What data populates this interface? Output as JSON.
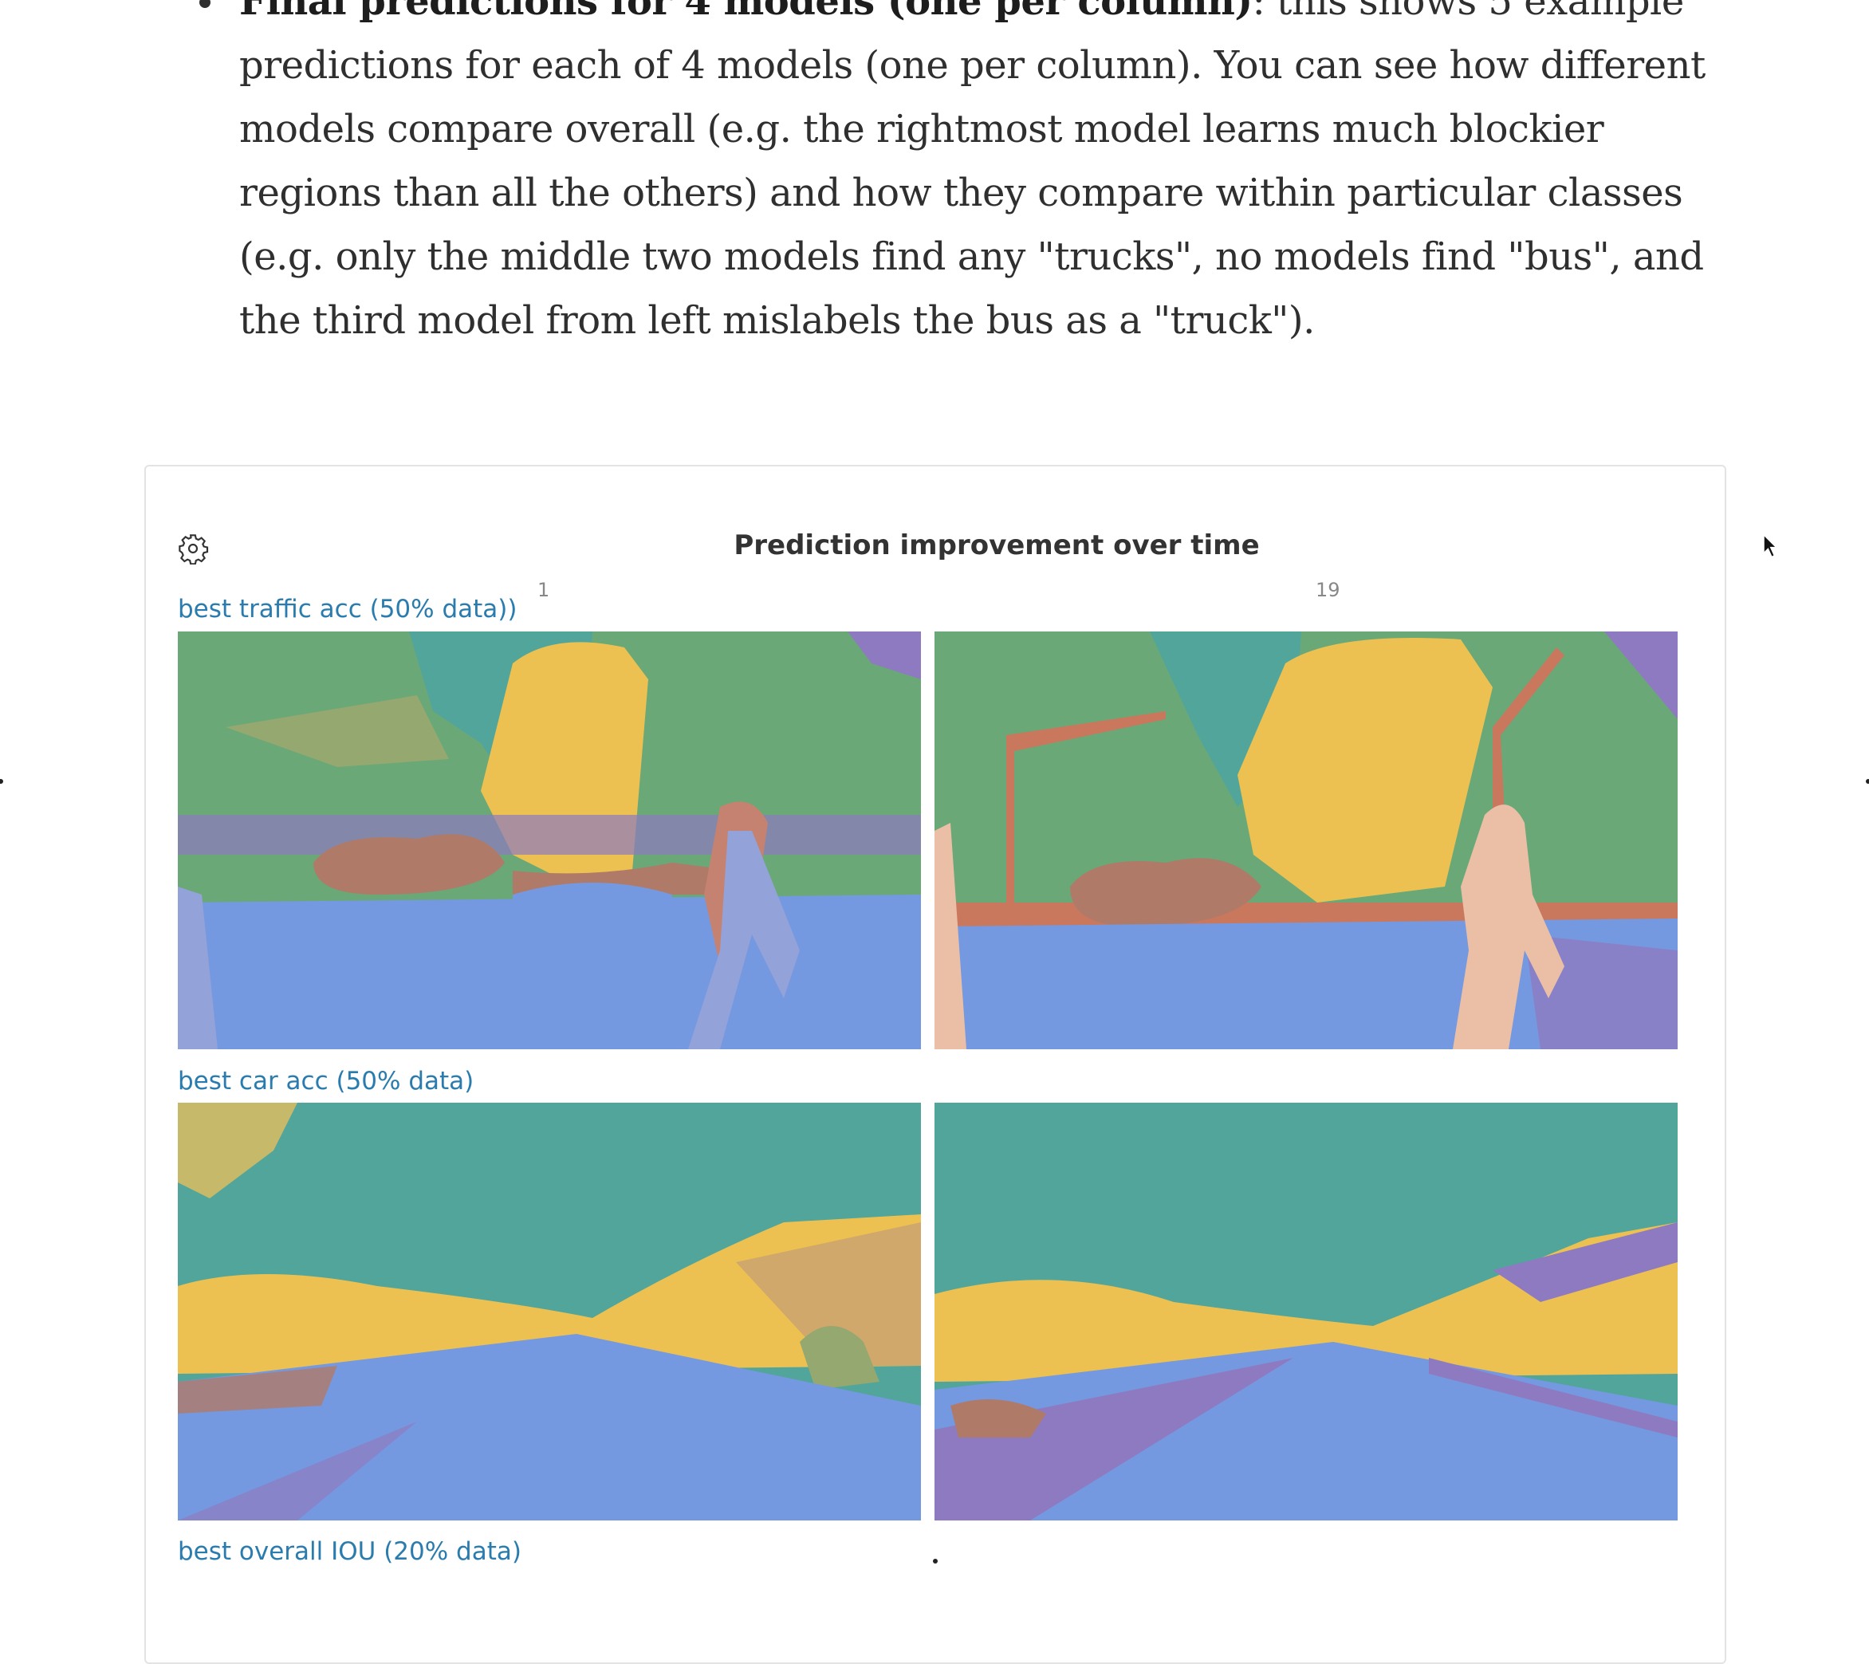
{
  "text": {
    "bold_lead": "Final predictions for 4 models (one per column)",
    "body": ": this shows 5 example predictions for each of 4 models (one per column). You can see how different models compare overall (e.g. the rightmost model learns much blockier regions than all the others) and how they compare within particular classes (e.g. only the middle two models find any \"trucks\", no models find \"bus\", and the third model from left mislabels the bus as a \"truck\")."
  },
  "panel": {
    "title": "Prediction improvement over time",
    "settings_icon": "gear-icon",
    "steps": [
      "1",
      "19"
    ],
    "rows": [
      {
        "label": "best traffic acc (50% data))"
      },
      {
        "label": "best car acc (50% data)"
      },
      {
        "label": "best overall IOU (20% data)"
      }
    ]
  },
  "colors": {
    "link": "#2a7cae",
    "road": "#7599e0",
    "vegetation": "#6aa878",
    "sky": "#52a59a",
    "tree": "#ecc152",
    "car": "#b07a68",
    "person": "#ebbfa6",
    "sidewalk": "#8e7ac0"
  }
}
